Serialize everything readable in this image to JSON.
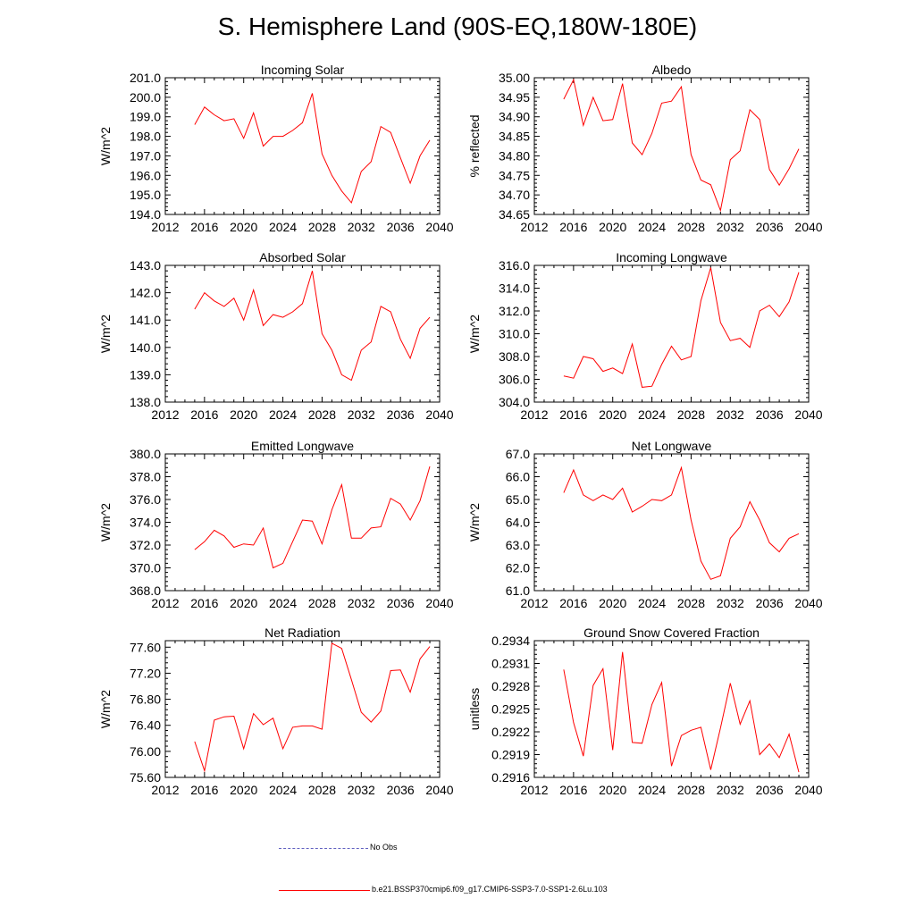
{
  "figure": {
    "title": "S. Hemisphere Land (90S-EQ,180W-180E)",
    "line_color": "#ff0000",
    "obs_color": "#6060c0"
  },
  "legend": {
    "obs_label": "No Obs",
    "model_label": "b.e21.BSSP370cmip6.f09_g17.CMIP6-SSP3-7.0-SSP1-2.6Lu.103"
  },
  "chart_data": [
    {
      "type": "line",
      "title": "Incoming Solar",
      "ylabel": "W/m^2",
      "xlim": [
        2012,
        2040
      ],
      "xticks": [
        "2012",
        "2016",
        "2020",
        "2024",
        "2028",
        "2032",
        "2036",
        "2040"
      ],
      "ylim": [
        194.0,
        201.0
      ],
      "ytick_values": [
        194,
        195,
        196,
        197,
        198,
        199,
        200,
        201
      ],
      "yticks": [
        "194.0",
        "195.0",
        "196.0",
        "197.0",
        "198.0",
        "199.0",
        "200.0",
        "201.0"
      ],
      "x": [
        2015,
        2016,
        2017,
        2018,
        2019,
        2020,
        2021,
        2022,
        2023,
        2024,
        2025,
        2026,
        2027,
        2028,
        2029,
        2030,
        2031,
        2032,
        2033,
        2034,
        2035,
        2036,
        2037,
        2038,
        2039
      ],
      "y": [
        198.6,
        199.5,
        199.1,
        198.8,
        198.9,
        197.9,
        199.2,
        197.5,
        198.0,
        198.0,
        198.3,
        198.7,
        200.2,
        197.1,
        196.0,
        195.2,
        194.6,
        196.2,
        196.7,
        198.5,
        198.2,
        196.9,
        195.6,
        197.0,
        197.8
      ]
    },
    {
      "type": "line",
      "title": "Albedo",
      "ylabel": "% reflected",
      "xlim": [
        2012,
        2040
      ],
      "xticks": [
        "2012",
        "2016",
        "2020",
        "2024",
        "2028",
        "2032",
        "2036",
        "2040"
      ],
      "ylim": [
        34.65,
        35.0
      ],
      "ytick_values": [
        34.65,
        34.7,
        34.75,
        34.8,
        34.85,
        34.9,
        34.95,
        35.0
      ],
      "yticks": [
        "34.65",
        "34.70",
        "34.75",
        "34.80",
        "34.85",
        "34.90",
        "34.95",
        "35.00"
      ],
      "x": [
        2015,
        2016,
        2017,
        2018,
        2019,
        2020,
        2021,
        2022,
        2023,
        2024,
        2025,
        2026,
        2027,
        2028,
        2029,
        2030,
        2031,
        2032,
        2033,
        2034,
        2035,
        2036,
        2037,
        2038,
        2039
      ],
      "y": [
        34.945,
        34.995,
        34.878,
        34.95,
        34.89,
        34.893,
        34.985,
        34.833,
        34.803,
        34.858,
        34.935,
        34.94,
        34.977,
        34.803,
        34.738,
        34.726,
        34.66,
        34.79,
        34.813,
        34.918,
        34.893,
        34.765,
        34.725,
        34.767,
        34.818
      ]
    },
    {
      "type": "line",
      "title": "Absorbed Solar",
      "ylabel": "W/m^2",
      "xlim": [
        2012,
        2040
      ],
      "xticks": [
        "2012",
        "2016",
        "2020",
        "2024",
        "2028",
        "2032",
        "2036",
        "2040"
      ],
      "ylim": [
        138.0,
        143.0
      ],
      "ytick_values": [
        138,
        139,
        140,
        141,
        142,
        143
      ],
      "yticks": [
        "138.0",
        "139.0",
        "140.0",
        "141.0",
        "142.0",
        "143.0"
      ],
      "x": [
        2015,
        2016,
        2017,
        2018,
        2019,
        2020,
        2021,
        2022,
        2023,
        2024,
        2025,
        2026,
        2027,
        2028,
        2029,
        2030,
        2031,
        2032,
        2033,
        2034,
        2035,
        2036,
        2037,
        2038,
        2039
      ],
      "y": [
        141.4,
        142.0,
        141.7,
        141.5,
        141.8,
        141.0,
        142.1,
        140.8,
        141.2,
        141.1,
        141.3,
        141.6,
        142.8,
        140.5,
        139.9,
        139.0,
        138.8,
        139.9,
        140.2,
        141.5,
        141.3,
        140.3,
        139.6,
        140.7,
        141.1
      ]
    },
    {
      "type": "line",
      "title": "Incoming Longwave",
      "ylabel": "W/m^2",
      "xlim": [
        2012,
        2040
      ],
      "xticks": [
        "2012",
        "2016",
        "2020",
        "2024",
        "2028",
        "2032",
        "2036",
        "2040"
      ],
      "ylim": [
        304.0,
        316.0
      ],
      "ytick_values": [
        304,
        306,
        308,
        310,
        312,
        314,
        316
      ],
      "yticks": [
        "304.0",
        "306.0",
        "308.0",
        "310.0",
        "312.0",
        "314.0",
        "316.0"
      ],
      "x": [
        2015,
        2016,
        2017,
        2018,
        2019,
        2020,
        2021,
        2022,
        2023,
        2024,
        2025,
        2026,
        2027,
        2028,
        2029,
        2030,
        2031,
        2032,
        2033,
        2034,
        2035,
        2036,
        2037,
        2038,
        2039
      ],
      "y": [
        306.3,
        306.1,
        308.0,
        307.8,
        306.7,
        307.0,
        306.5,
        309.1,
        305.3,
        305.4,
        307.3,
        308.9,
        307.7,
        308.0,
        312.9,
        315.8,
        311.0,
        309.4,
        309.6,
        308.8,
        312.0,
        312.5,
        311.5,
        312.8,
        315.4
      ]
    },
    {
      "type": "line",
      "title": "Emitted Longwave",
      "ylabel": "W/m^2",
      "xlim": [
        2012,
        2040
      ],
      "xticks": [
        "2012",
        "2016",
        "2020",
        "2024",
        "2028",
        "2032",
        "2036",
        "2040"
      ],
      "ylim": [
        368.0,
        380.0
      ],
      "ytick_values": [
        368,
        370,
        372,
        374,
        376,
        378,
        380
      ],
      "yticks": [
        "368.0",
        "370.0",
        "372.0",
        "374.0",
        "376.0",
        "378.0",
        "380.0"
      ],
      "x": [
        2015,
        2016,
        2017,
        2018,
        2019,
        2020,
        2021,
        2022,
        2023,
        2024,
        2025,
        2026,
        2027,
        2028,
        2029,
        2030,
        2031,
        2032,
        2033,
        2034,
        2035,
        2036,
        2037,
        2038,
        2039
      ],
      "y": [
        371.6,
        372.3,
        373.3,
        372.8,
        371.8,
        372.1,
        372.0,
        373.5,
        370.0,
        370.4,
        372.3,
        374.2,
        374.1,
        372.1,
        375.1,
        377.3,
        372.6,
        372.6,
        373.5,
        373.6,
        376.1,
        375.6,
        374.2,
        375.9,
        378.9
      ]
    },
    {
      "type": "line",
      "title": "Net Longwave",
      "ylabel": "W/m^2",
      "xlim": [
        2012,
        2040
      ],
      "xticks": [
        "2012",
        "2016",
        "2020",
        "2024",
        "2028",
        "2032",
        "2036",
        "2040"
      ],
      "ylim": [
        61.0,
        67.0
      ],
      "ytick_values": [
        61,
        62,
        63,
        64,
        65,
        66,
        67
      ],
      "yticks": [
        "61.0",
        "62.0",
        "63.0",
        "64.0",
        "65.0",
        "66.0",
        "67.0"
      ],
      "x": [
        2015,
        2016,
        2017,
        2018,
        2019,
        2020,
        2021,
        2022,
        2023,
        2024,
        2025,
        2026,
        2027,
        2028,
        2029,
        2030,
        2031,
        2032,
        2033,
        2034,
        2035,
        2036,
        2037,
        2038,
        2039
      ],
      "y": [
        65.3,
        66.3,
        65.2,
        64.95,
        65.2,
        65.0,
        65.5,
        64.45,
        64.7,
        65.0,
        64.95,
        65.2,
        66.4,
        64.1,
        62.3,
        61.5,
        61.65,
        63.3,
        63.8,
        64.9,
        64.1,
        63.1,
        62.7,
        63.3,
        63.5
      ]
    },
    {
      "type": "line",
      "title": "Net Radiation",
      "ylabel": "W/m^2",
      "xlim": [
        2012,
        2040
      ],
      "xticks": [
        "2012",
        "2016",
        "2020",
        "2024",
        "2028",
        "2032",
        "2036",
        "2040"
      ],
      "ylim": [
        75.6,
        77.7
      ],
      "ytick_values": [
        75.6,
        76.0,
        76.4,
        76.8,
        77.2,
        77.6
      ],
      "yticks": [
        "75.60",
        "76.00",
        "76.40",
        "76.80",
        "77.20",
        "77.60"
      ],
      "x": [
        2015,
        2016,
        2017,
        2018,
        2019,
        2020,
        2021,
        2022,
        2023,
        2024,
        2025,
        2026,
        2027,
        2028,
        2029,
        2030,
        2031,
        2032,
        2033,
        2034,
        2035,
        2036,
        2037,
        2038,
        2039
      ],
      "y": [
        76.15,
        75.7,
        76.48,
        76.53,
        76.54,
        76.04,
        76.58,
        76.41,
        76.51,
        76.04,
        76.37,
        76.39,
        76.39,
        76.34,
        77.66,
        77.58,
        77.1,
        76.6,
        76.45,
        76.62,
        77.24,
        77.25,
        76.91,
        77.42,
        77.61
      ]
    },
    {
      "type": "line",
      "title": "Ground Snow Covered Fraction",
      "ylabel": "unitless",
      "xlim": [
        2012,
        2040
      ],
      "xticks": [
        "2012",
        "2016",
        "2020",
        "2024",
        "2028",
        "2032",
        "2036",
        "2040"
      ],
      "ylim": [
        0.2916,
        0.2934
      ],
      "ytick_values": [
        0.2916,
        0.2919,
        0.2922,
        0.2925,
        0.2928,
        0.2931,
        0.2934
      ],
      "yticks": [
        "0.2916",
        "0.2919",
        "0.2922",
        "0.2925",
        "0.2928",
        "0.2931",
        "0.2934"
      ],
      "x": [
        2015,
        2016,
        2017,
        2018,
        2019,
        2020,
        2021,
        2022,
        2023,
        2024,
        2025,
        2026,
        2027,
        2028,
        2029,
        2030,
        2031,
        2032,
        2033,
        2034,
        2035,
        2036,
        2037,
        2038,
        2039
      ],
      "y": [
        0.29302,
        0.29232,
        0.29188,
        0.29281,
        0.29303,
        0.29196,
        0.29325,
        0.29206,
        0.29205,
        0.29256,
        0.29285,
        0.29175,
        0.29215,
        0.29222,
        0.29226,
        0.2917,
        0.29225,
        0.29284,
        0.2923,
        0.29261,
        0.2919,
        0.29204,
        0.29186,
        0.29217,
        0.29167
      ]
    }
  ]
}
